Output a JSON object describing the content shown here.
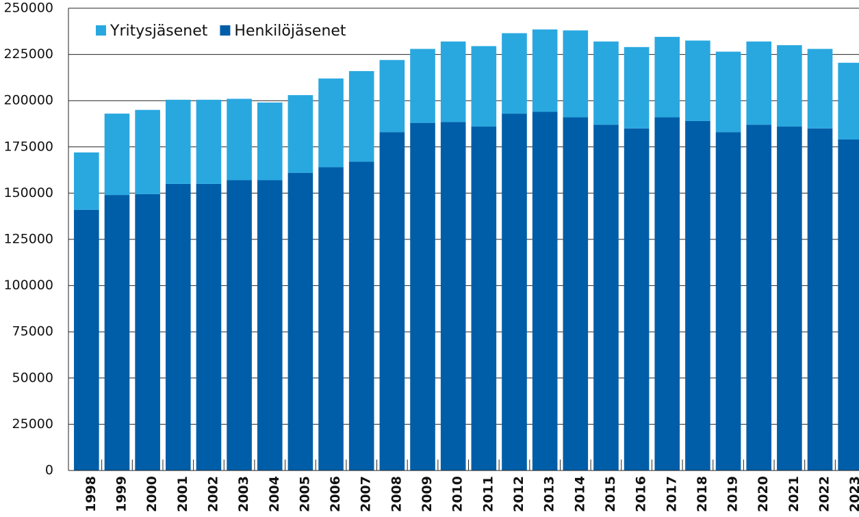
{
  "chart_data": {
    "type": "stacked_bar",
    "categories": [
      "1998",
      "1999",
      "2000",
      "2001",
      "2002",
      "2003",
      "2004",
      "2005",
      "2006",
      "2007",
      "2008",
      "2009",
      "2010",
      "2011",
      "2012",
      "2013",
      "2014",
      "2015",
      "2016",
      "2017",
      "2018",
      "2019",
      "2020",
      "2021",
      "2022",
      "2023"
    ],
    "series": [
      {
        "name": "Yritysjäsenet",
        "color": "#29a8e0",
        "values": [
          31000,
          44000,
          45500,
          45500,
          45500,
          44000,
          42000,
          42000,
          48000,
          49000,
          39000,
          40000,
          43500,
          43500,
          43500,
          44500,
          47000,
          45000,
          44000,
          43500,
          43500,
          43500,
          45000,
          44000,
          43000,
          41500
        ]
      },
      {
        "name": "Henkilöjäsenet",
        "color": "#005ea8",
        "values": [
          141000,
          149000,
          149500,
          155000,
          155000,
          157000,
          157000,
          161000,
          164000,
          167000,
          183000,
          188000,
          188500,
          186000,
          193000,
          194000,
          191000,
          187000,
          185000,
          191000,
          189000,
          183000,
          187000,
          186000,
          185000,
          179000
        ]
      }
    ],
    "ylim": [
      0,
      250000
    ],
    "yticks": [
      0,
      25000,
      50000,
      75000,
      100000,
      125000,
      150000,
      175000,
      200000,
      225000,
      250000
    ],
    "grid": true,
    "legend": "top-left"
  }
}
